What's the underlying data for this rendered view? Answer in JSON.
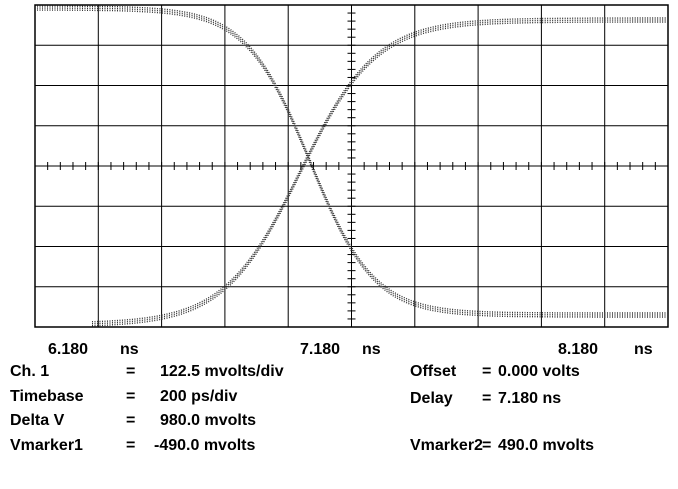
{
  "axis_labels": [
    {
      "value": "6.180",
      "unit": "ns"
    },
    {
      "value": "7.180",
      "unit": "ns"
    },
    {
      "value": "8.180",
      "unit": "ns"
    }
  ],
  "readouts": {
    "left": [
      {
        "label": "Ch. 1",
        "eq": "=",
        "value": "122.5 mvolts/div"
      },
      {
        "label": "Timebase",
        "eq": "=",
        "value": "200 ps/div"
      },
      {
        "label": "Delta V",
        "eq": "=",
        "value": "980.0 mvolts"
      },
      {
        "label": "Vmarker1",
        "eq": "=",
        "value": "-490.0 mvolts"
      }
    ],
    "right": [
      {
        "label": "Offset",
        "eq": "=",
        "value": "0.000 volts"
      },
      {
        "label": "Delay",
        "eq": "=",
        "value": "7.180 ns"
      },
      {
        "label": "Vmarker2",
        "eq": "=",
        "value": "490.0 mvolts"
      }
    ]
  }
}
